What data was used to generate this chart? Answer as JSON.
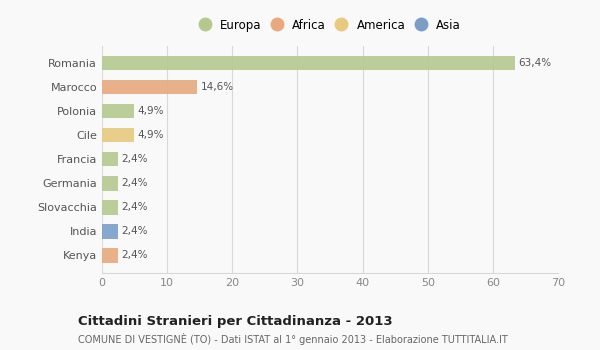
{
  "categories": [
    "Romania",
    "Marocco",
    "Polonia",
    "Cile",
    "Francia",
    "Germania",
    "Slovacchia",
    "India",
    "Kenya"
  ],
  "values": [
    63.4,
    14.6,
    4.9,
    4.9,
    2.4,
    2.4,
    2.4,
    2.4,
    2.4
  ],
  "labels": [
    "63,4%",
    "14,6%",
    "4,9%",
    "4,9%",
    "2,4%",
    "2,4%",
    "2,4%",
    "2,4%",
    "2,4%"
  ],
  "colors": [
    "#b5c98e",
    "#e8a97e",
    "#b5c98e",
    "#e8c97e",
    "#b5c98e",
    "#b5c98e",
    "#b5c98e",
    "#7b9ec9",
    "#e8a97e"
  ],
  "legend_labels": [
    "Europa",
    "Africa",
    "America",
    "Asia"
  ],
  "legend_colors": [
    "#b5c98e",
    "#e8a97e",
    "#e8c97e",
    "#7b9ec9"
  ],
  "xlim": [
    0,
    70
  ],
  "xticks": [
    0,
    10,
    20,
    30,
    40,
    50,
    60,
    70
  ],
  "title": "Cittadini Stranieri per Cittadinanza - 2013",
  "subtitle": "COMUNE DI VESTIGNÈ (TO) - Dati ISTAT al 1° gennaio 2013 - Elaborazione TUTTITALIA.IT",
  "bg_color": "#f9f9f9",
  "grid_color": "#d8d8d8"
}
